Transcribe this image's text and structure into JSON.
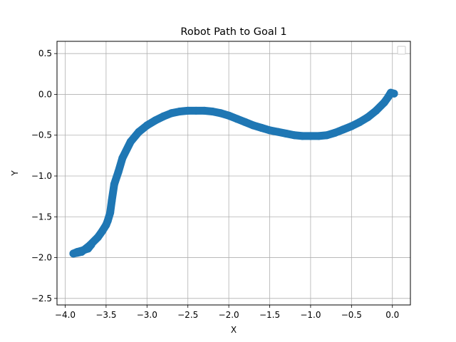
{
  "chart_data": {
    "type": "scatter",
    "title": "Robot Path to Goal 1",
    "xlabel": "X",
    "ylabel": "Y",
    "xlim": [
      -4.1,
      0.22
    ],
    "ylim": [
      -2.58,
      0.65
    ],
    "xticks": [
      -4.0,
      -3.5,
      -3.0,
      -2.5,
      -2.0,
      -1.5,
      -1.0,
      -0.5,
      0.0
    ],
    "yticks": [
      -2.5,
      -2.0,
      -1.5,
      -1.0,
      -0.5,
      0.0,
      0.5
    ],
    "xtick_labels": [
      "−4.0",
      "−3.5",
      "−3.0",
      "−2.5",
      "−2.0",
      "−1.5",
      "−1.0",
      "−0.5",
      "0.0"
    ],
    "ytick_labels": [
      "−2.5",
      "−2.0",
      "−1.5",
      "−1.0",
      "−0.5",
      "0.0",
      "0.5"
    ],
    "grid": true,
    "legend": "top-right",
    "series": [
      {
        "color": "#1f77b4",
        "x": [
          0.02,
          -0.02,
          -0.05,
          -0.1,
          -0.2,
          -0.3,
          -0.4,
          -0.5,
          -0.6,
          -0.7,
          -0.8,
          -0.9,
          -1.0,
          -1.1,
          -1.2,
          -1.3,
          -1.4,
          -1.5,
          -1.6,
          -1.7,
          -1.8,
          -1.9,
          -2.0,
          -2.1,
          -2.2,
          -2.3,
          -2.4,
          -2.5,
          -2.6,
          -2.7,
          -2.8,
          -2.9,
          -3.0,
          -3.1,
          -3.2,
          -3.3,
          -3.35,
          -3.4,
          -3.43,
          -3.45,
          -3.48,
          -3.5,
          -3.55,
          -3.6,
          -3.7,
          -3.8,
          -3.85,
          -3.9,
          -3.85,
          -3.78,
          -3.72,
          -3.68
        ],
        "y": [
          0.01,
          0.02,
          -0.03,
          -0.1,
          -0.2,
          -0.28,
          -0.34,
          -0.39,
          -0.43,
          -0.47,
          -0.5,
          -0.51,
          -0.51,
          -0.51,
          -0.5,
          -0.48,
          -0.46,
          -0.44,
          -0.41,
          -0.38,
          -0.34,
          -0.3,
          -0.26,
          -0.23,
          -0.21,
          -0.2,
          -0.2,
          -0.2,
          -0.21,
          -0.23,
          -0.27,
          -0.32,
          -0.38,
          -0.46,
          -0.58,
          -0.78,
          -0.95,
          -1.1,
          -1.3,
          -1.45,
          -1.55,
          -1.6,
          -1.68,
          -1.75,
          -1.85,
          -1.93,
          -1.94,
          -1.95,
          -1.93,
          -1.91,
          -1.89,
          -1.84
        ]
      }
    ]
  }
}
